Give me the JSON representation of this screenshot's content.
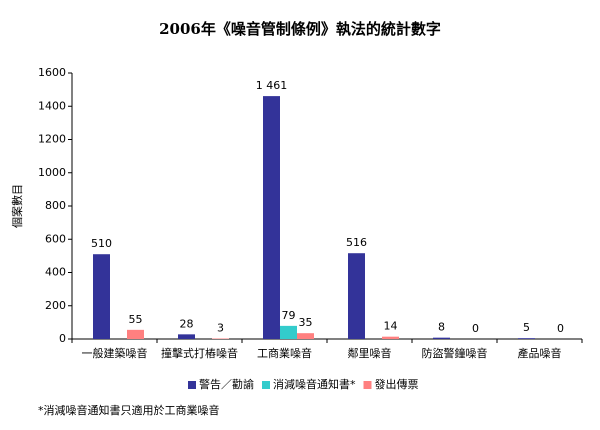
{
  "chart_data": {
    "type": "bar",
    "title": "2006年《噪音管制條例》執法的統計數字",
    "y_label": "個案數目",
    "categories": [
      "一般建築噪音",
      "撞擊式打樁噪音",
      "工商業噪音",
      "鄰里噪音",
      "防盜警鐘噪音",
      "產品噪音"
    ],
    "series": [
      {
        "name": "警告／勸諭",
        "color": "#333399",
        "values": [
          510,
          28,
          1461,
          516,
          8,
          5
        ],
        "value_labels": [
          "510",
          "28",
          "1 461",
          "516",
          "8",
          "5"
        ]
      },
      {
        "name": "消減噪音通知書*",
        "color": "#33cccc",
        "values": [
          null,
          null,
          79,
          null,
          null,
          null
        ]
      },
      {
        "name": "發出傳票",
        "color": "#ff8080",
        "values": [
          55,
          3,
          35,
          14,
          0,
          0
        ]
      }
    ],
    "ylim": [
      0,
      1600
    ],
    "yticks": [
      0,
      200,
      400,
      600,
      800,
      1000,
      1200,
      1400,
      1600
    ],
    "grid": false,
    "legend": "bottom",
    "footnote": "*消減噪音通知書只適用於工商業噪音"
  }
}
